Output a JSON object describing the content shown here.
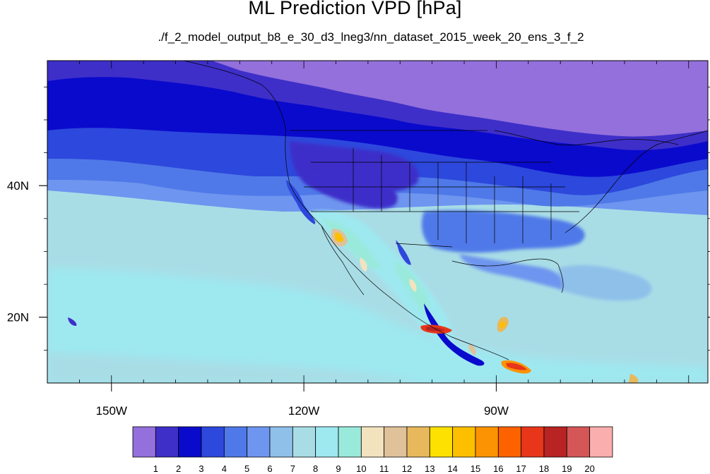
{
  "title": "ML Prediction VPD [hPa]",
  "subtitle": "./f_2_model_output_b8_e_30_d3_lneg3/nn_dataset_2015_week_20_ens_3_f_2",
  "map": {
    "x_ticks": [
      {
        "lon": -150,
        "label": "150W"
      },
      {
        "lon": -120,
        "label": "120W"
      },
      {
        "lon": -90,
        "label": "90W"
      }
    ],
    "y_ticks": [
      {
        "lat": 40,
        "label": "40N"
      },
      {
        "lat": 20,
        "label": "20N"
      }
    ],
    "lon_range": [
      -160,
      -57
    ],
    "lat_range": [
      10,
      59
    ]
  },
  "colorbar": {
    "colors": [
      "#9370db",
      "#3e2fc9",
      "#0a0acd",
      "#2d48dc",
      "#4f79e8",
      "#6e95ef",
      "#8fc0ea",
      "#a9dde6",
      "#9ee8f0",
      "#99eadb",
      "#f2e3be",
      "#dfc19a",
      "#e7b95c",
      "#fde100",
      "#fdbf00",
      "#fc9303",
      "#fc6200",
      "#e7361a",
      "#b82323",
      "#d45656",
      "#fbaeae"
    ],
    "labels": [
      "1",
      "2",
      "3",
      "4",
      "5",
      "6",
      "7",
      "8",
      "9",
      "10",
      "11",
      "12",
      "13",
      "14",
      "15",
      "16",
      "17",
      "18",
      "19",
      "20"
    ]
  }
}
